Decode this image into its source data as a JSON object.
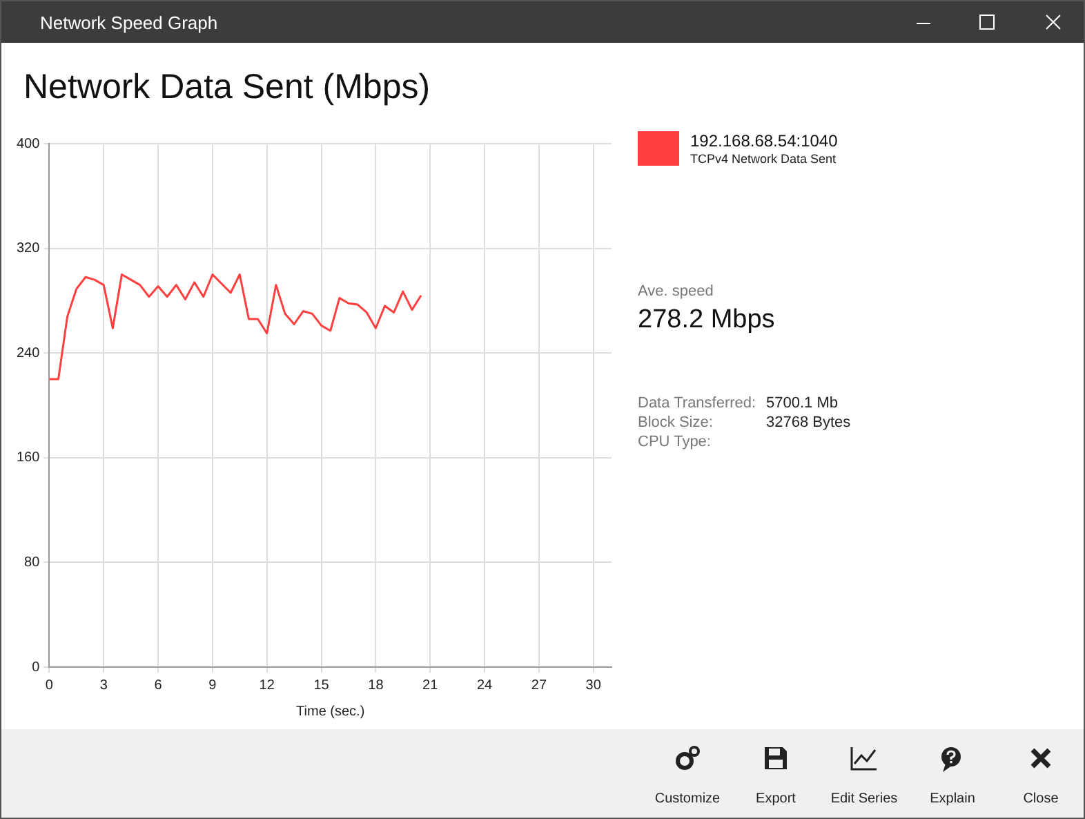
{
  "chart_data": {
    "type": "line",
    "title": "Network Data Sent (Mbps)",
    "xlabel": "Time (sec.)",
    "x": [
      0,
      0.5,
      1,
      1.5,
      2,
      2.5,
      3,
      3.5,
      4,
      4.5,
      5,
      5.5,
      6,
      6.5,
      7,
      7.5,
      8,
      8.5,
      9,
      9.5,
      10,
      10.5,
      11,
      11.5,
      12,
      12.5,
      13,
      13.5,
      14,
      14.5,
      15,
      15.5,
      16,
      16.5,
      17,
      17.5,
      18,
      18.5,
      19,
      19.5,
      20,
      20.5
    ],
    "series": [
      {
        "name": "192.168.68.54:1040",
        "color": "#ff4040",
        "values": [
          220,
          220,
          268,
          289,
          298,
          296,
          292,
          259,
          300,
          296,
          292,
          283,
          291,
          283,
          292,
          281,
          294,
          283,
          300,
          293,
          286,
          300,
          266,
          266,
          255,
          292,
          270,
          262,
          272,
          270,
          261,
          257,
          282,
          278,
          277,
          271,
          259,
          276,
          271,
          287,
          273,
          284
        ]
      }
    ],
    "xlim": [
      0,
      31
    ],
    "xticks": [
      0,
      3,
      6,
      9,
      12,
      15,
      18,
      21,
      24,
      27,
      30
    ],
    "ylim": [
      0,
      400
    ],
    "yticks": [
      0,
      80,
      160,
      240,
      320,
      400
    ],
    "grid": true,
    "legend": "right",
    "marker": "none",
    "line_style": "solid",
    "annotations": [
      "Network Speed Graph",
      "TCPv4 Network Data Sent",
      "Ave. speed",
      "278.2 Mbps",
      "Data Transferred:",
      "5700.1 Mb",
      "Block Size:",
      "32768 Bytes",
      "CPU Type:",
      "Customize",
      "Export",
      "Edit Series",
      "Explain",
      "Close"
    ]
  }
}
